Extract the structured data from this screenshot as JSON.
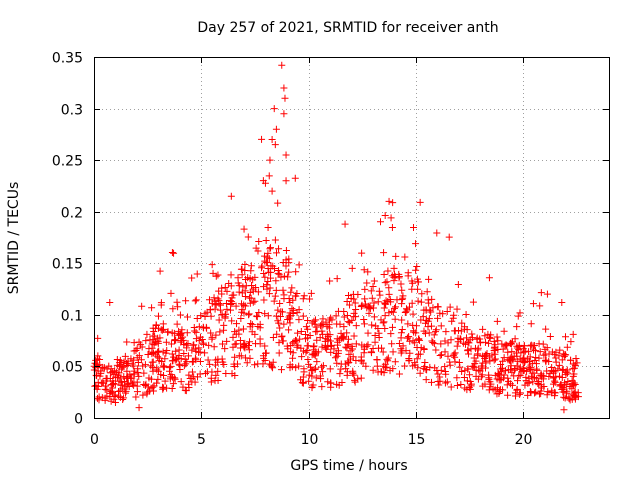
{
  "chart_data": {
    "type": "scatter",
    "title": "Day 257 of 2021, SRMTID for receiver anth",
    "xlabel": "GPS time / hours",
    "ylabel": "SRMTID / TECUs",
    "xlim": [
      0,
      24
    ],
    "ylim": [
      0,
      0.35
    ],
    "x_ticks": [
      0,
      5,
      10,
      15,
      20
    ],
    "x_tick_labels": [
      "0",
      "5",
      "10",
      "15",
      "20"
    ],
    "y_ticks": [
      0,
      0.05,
      0.1,
      0.15,
      0.2,
      0.25,
      0.3,
      0.35
    ],
    "y_tick_labels": [
      "0",
      "0.05",
      "0.1",
      "0.15",
      "0.2",
      "0.25",
      "0.3",
      "0.35"
    ],
    "grid": true,
    "marker": "+",
    "color": "#ff0000",
    "envelope": {
      "description": "approximate baseline level (data units) over GPS time, used to generate the dense point cloud",
      "x": [
        0,
        1,
        2,
        3,
        4,
        5,
        6,
        7,
        8,
        9,
        10,
        11,
        12,
        13,
        14,
        15,
        16,
        17,
        18,
        19,
        20,
        21,
        22,
        22.6
      ],
      "y": [
        0.04,
        0.035,
        0.045,
        0.06,
        0.055,
        0.065,
        0.085,
        0.095,
        0.11,
        0.1,
        0.06,
        0.065,
        0.075,
        0.085,
        0.095,
        0.09,
        0.07,
        0.06,
        0.055,
        0.05,
        0.045,
        0.05,
        0.04,
        0.035
      ]
    },
    "highlighted_points": [
      {
        "x": 8.75,
        "y": 0.342
      },
      {
        "x": 8.85,
        "y": 0.32
      },
      {
        "x": 8.9,
        "y": 0.31
      },
      {
        "x": 8.85,
        "y": 0.295
      },
      {
        "x": 8.4,
        "y": 0.3
      },
      {
        "x": 8.5,
        "y": 0.28
      },
      {
        "x": 8.3,
        "y": 0.27
      },
      {
        "x": 8.45,
        "y": 0.265
      },
      {
        "x": 8.95,
        "y": 0.255
      },
      {
        "x": 8.2,
        "y": 0.25
      },
      {
        "x": 8.95,
        "y": 0.23
      },
      {
        "x": 8.3,
        "y": 0.22
      },
      {
        "x": 6.4,
        "y": 0.215
      },
      {
        "x": 13.75,
        "y": 0.21
      },
      {
        "x": 15.2,
        "y": 0.209
      },
      {
        "x": 11.7,
        "y": 0.188
      },
      {
        "x": 21.8,
        "y": 0.112
      },
      {
        "x": 1.0,
        "y": 0.015
      },
      {
        "x": 2.1,
        "y": 0.01
      },
      {
        "x": 21.9,
        "y": 0.008
      }
    ]
  }
}
